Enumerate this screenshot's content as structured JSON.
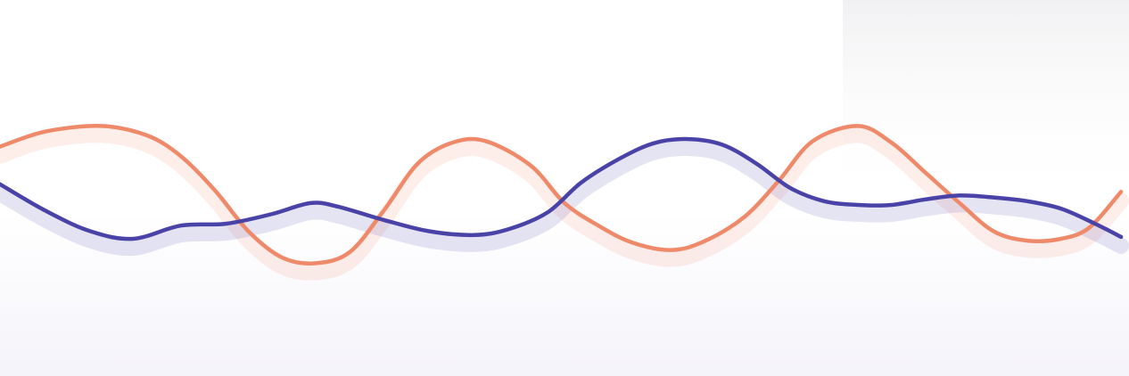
{
  "chart_data": {
    "type": "line",
    "title": "",
    "xlabel": "",
    "ylabel": "",
    "grid": false,
    "legend": "none",
    "smooth": true,
    "xlim": [
      0,
      100
    ],
    "ylim": [
      0,
      100
    ],
    "series": [
      {
        "color": "#ee8a6a",
        "points": [
          [
            0,
            61
          ],
          [
            4,
            65
          ],
          [
            9,
            66.5
          ],
          [
            13,
            64
          ],
          [
            16,
            58.5
          ],
          [
            19,
            49.5
          ],
          [
            22,
            38.5
          ],
          [
            25,
            31.5
          ],
          [
            28,
            30
          ],
          [
            31,
            33
          ],
          [
            34,
            44
          ],
          [
            37,
            56.5
          ],
          [
            40,
            62
          ],
          [
            43,
            62.5
          ],
          [
            47,
            56
          ],
          [
            50,
            46
          ],
          [
            53,
            40
          ],
          [
            56,
            35.5
          ],
          [
            59.5,
            33.5
          ],
          [
            62.5,
            36
          ],
          [
            66,
            42.5
          ],
          [
            69,
            52
          ],
          [
            72,
            62.5
          ],
          [
            76,
            66.5
          ],
          [
            79,
            62
          ],
          [
            82,
            54
          ],
          [
            85,
            46
          ],
          [
            88,
            38.5
          ],
          [
            91,
            36
          ],
          [
            94,
            36.5
          ],
          [
            96.5,
            39.5
          ],
          [
            99.3,
            49
          ]
        ]
      },
      {
        "color": "#4a43a7",
        "points": [
          [
            0,
            51
          ],
          [
            4,
            44
          ],
          [
            8,
            38.5
          ],
          [
            11.8,
            36.5
          ],
          [
            16,
            40
          ],
          [
            20,
            40.5
          ],
          [
            24,
            43
          ],
          [
            27.5,
            46
          ],
          [
            30,
            45
          ],
          [
            34,
            41.5
          ],
          [
            38,
            38.5
          ],
          [
            42,
            37.5
          ],
          [
            45,
            39
          ],
          [
            48.5,
            43.5
          ],
          [
            51.5,
            51.5
          ],
          [
            55,
            58
          ],
          [
            58,
            62
          ],
          [
            61,
            63
          ],
          [
            64,
            61.5
          ],
          [
            67,
            56.5
          ],
          [
            70,
            50
          ],
          [
            73,
            46.5
          ],
          [
            76,
            45.5
          ],
          [
            79,
            45.5
          ],
          [
            82,
            47
          ],
          [
            85,
            48
          ],
          [
            88,
            47.5
          ],
          [
            91,
            46.5
          ],
          [
            94,
            44.5
          ],
          [
            97,
            40.5
          ],
          [
            99.3,
            37
          ]
        ]
      }
    ]
  }
}
